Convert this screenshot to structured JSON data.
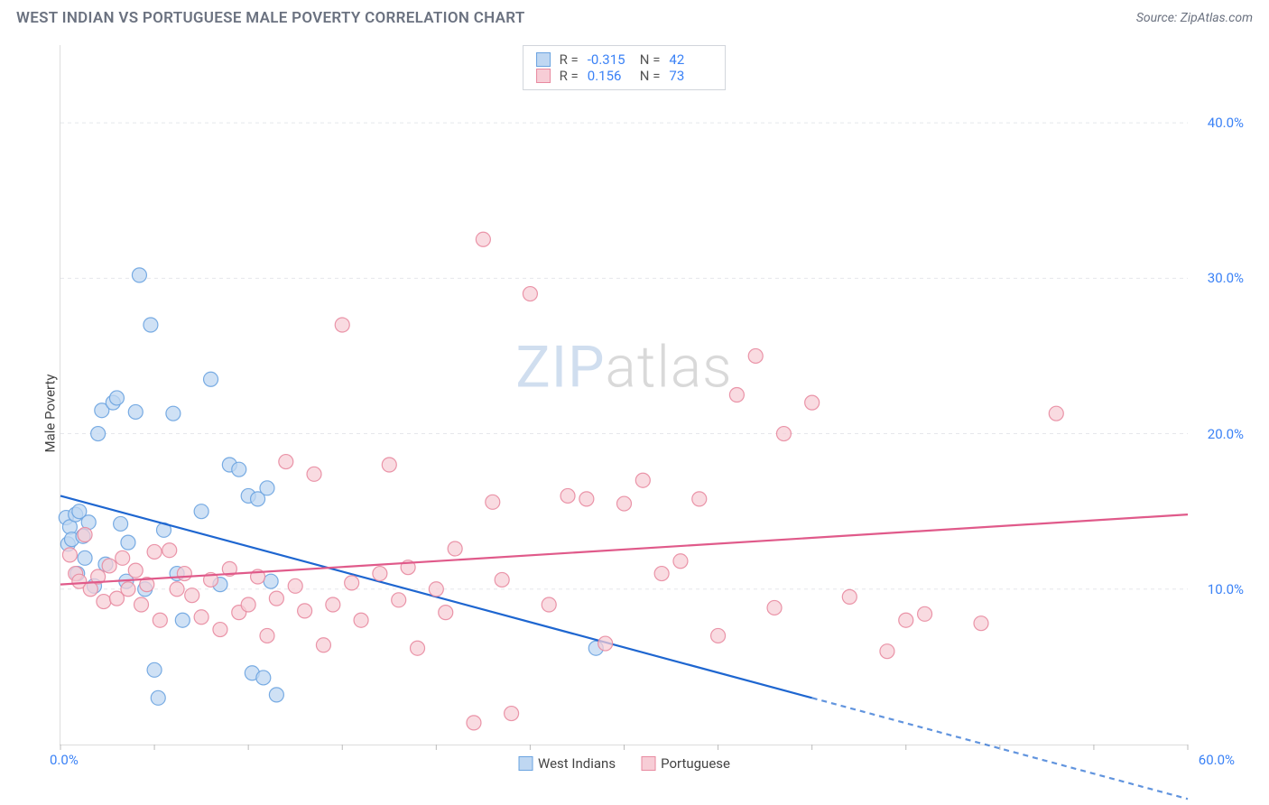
{
  "header": {
    "title": "WEST INDIAN VS PORTUGUESE MALE POVERTY CORRELATION CHART",
    "source": "Source: ZipAtlas.com"
  },
  "chart": {
    "type": "scatter",
    "ylabel": "Male Poverty",
    "xlim": [
      0,
      60
    ],
    "ylim": [
      0,
      45
    ],
    "x_tick_labels": {
      "min": "0.0%",
      "max": "60.0%"
    },
    "y_ticks": [
      10,
      20,
      30,
      40
    ],
    "y_tick_labels": [
      "10.0%",
      "20.0%",
      "30.0%",
      "40.0%"
    ],
    "x_minor_ticks": [
      0,
      5,
      10,
      15,
      20,
      25,
      30,
      35,
      40,
      45,
      50,
      55,
      60
    ],
    "background_color": "#ffffff",
    "grid_color": "#e5e7eb",
    "axis_color": "#dddddd",
    "tick_label_color": "#3b82f6",
    "watermark": {
      "zip": "ZIP",
      "atlas": "atlas"
    },
    "series": {
      "west_indians": {
        "label": "West Indians",
        "marker_fill": "#bfd7f2",
        "marker_stroke": "#6aa3e0",
        "marker_opacity": 0.75,
        "marker_radius": 8,
        "line_color": "#1e66d0",
        "line_width": 2.2,
        "trend": {
          "y_at_xmin": 16.0,
          "y_at_xmax": -3.5,
          "dash_after_x": 40
        },
        "R": "-0.315",
        "N": "42",
        "points": [
          [
            0.3,
            14.6
          ],
          [
            0.4,
            12.9
          ],
          [
            0.5,
            14.0
          ],
          [
            0.6,
            13.2
          ],
          [
            0.8,
            14.8
          ],
          [
            0.9,
            11.0
          ],
          [
            1.0,
            15.0
          ],
          [
            1.2,
            13.4
          ],
          [
            1.3,
            12.0
          ],
          [
            1.5,
            14.3
          ],
          [
            1.8,
            10.2
          ],
          [
            2.0,
            20.0
          ],
          [
            2.2,
            21.5
          ],
          [
            2.4,
            11.6
          ],
          [
            2.8,
            22.0
          ],
          [
            3.0,
            22.3
          ],
          [
            3.2,
            14.2
          ],
          [
            3.5,
            10.5
          ],
          [
            3.6,
            13.0
          ],
          [
            4.0,
            21.4
          ],
          [
            4.2,
            30.2
          ],
          [
            4.5,
            10.0
          ],
          [
            4.8,
            27.0
          ],
          [
            5.0,
            4.8
          ],
          [
            5.2,
            3.0
          ],
          [
            5.5,
            13.8
          ],
          [
            6.0,
            21.3
          ],
          [
            6.2,
            11.0
          ],
          [
            6.5,
            8.0
          ],
          [
            7.5,
            15.0
          ],
          [
            8.0,
            23.5
          ],
          [
            8.5,
            10.3
          ],
          [
            9.0,
            18.0
          ],
          [
            9.5,
            17.7
          ],
          [
            10.0,
            16.0
          ],
          [
            10.2,
            4.6
          ],
          [
            10.5,
            15.8
          ],
          [
            10.8,
            4.3
          ],
          [
            11.0,
            16.5
          ],
          [
            11.2,
            10.5
          ],
          [
            11.5,
            3.2
          ],
          [
            28.5,
            6.2
          ]
        ]
      },
      "portuguese": {
        "label": "Portuguese",
        "marker_fill": "#f7cdd6",
        "marker_stroke": "#e88aa0",
        "marker_opacity": 0.72,
        "marker_radius": 8,
        "line_color": "#e05a8a",
        "line_width": 2.2,
        "trend": {
          "y_at_xmin": 10.3,
          "y_at_xmax": 14.8
        },
        "R": "0.156",
        "N": "73",
        "points": [
          [
            0.5,
            12.2
          ],
          [
            0.8,
            11.0
          ],
          [
            1.0,
            10.5
          ],
          [
            1.3,
            13.5
          ],
          [
            1.6,
            10.0
          ],
          [
            2.0,
            10.8
          ],
          [
            2.3,
            9.2
          ],
          [
            2.6,
            11.5
          ],
          [
            3.0,
            9.4
          ],
          [
            3.3,
            12.0
          ],
          [
            3.6,
            10.0
          ],
          [
            4.0,
            11.2
          ],
          [
            4.3,
            9.0
          ],
          [
            4.6,
            10.3
          ],
          [
            5.0,
            12.4
          ],
          [
            5.3,
            8.0
          ],
          [
            5.8,
            12.5
          ],
          [
            6.2,
            10.0
          ],
          [
            6.6,
            11.0
          ],
          [
            7.0,
            9.6
          ],
          [
            7.5,
            8.2
          ],
          [
            8.0,
            10.6
          ],
          [
            8.5,
            7.4
          ],
          [
            9.0,
            11.3
          ],
          [
            9.5,
            8.5
          ],
          [
            10.0,
            9.0
          ],
          [
            10.5,
            10.8
          ],
          [
            11.0,
            7.0
          ],
          [
            11.5,
            9.4
          ],
          [
            12.0,
            18.2
          ],
          [
            12.5,
            10.2
          ],
          [
            13.0,
            8.6
          ],
          [
            13.5,
            17.4
          ],
          [
            14.0,
            6.4
          ],
          [
            14.5,
            9.0
          ],
          [
            15.0,
            27.0
          ],
          [
            15.5,
            10.4
          ],
          [
            16.0,
            8.0
          ],
          [
            17.0,
            11.0
          ],
          [
            17.5,
            18.0
          ],
          [
            18.0,
            9.3
          ],
          [
            18.5,
            11.4
          ],
          [
            19.0,
            6.2
          ],
          [
            20.0,
            10.0
          ],
          [
            20.5,
            8.5
          ],
          [
            21.0,
            12.6
          ],
          [
            22.0,
            1.4
          ],
          [
            22.5,
            32.5
          ],
          [
            23.0,
            15.6
          ],
          [
            23.5,
            10.6
          ],
          [
            24.0,
            2.0
          ],
          [
            25.0,
            29.0
          ],
          [
            26.0,
            9.0
          ],
          [
            27.0,
            16.0
          ],
          [
            28.0,
            15.8
          ],
          [
            29.0,
            6.5
          ],
          [
            30.0,
            15.5
          ],
          [
            31.0,
            17.0
          ],
          [
            32.0,
            11.0
          ],
          [
            33.0,
            11.8
          ],
          [
            34.0,
            15.8
          ],
          [
            35.0,
            7.0
          ],
          [
            36.0,
            22.5
          ],
          [
            37.0,
            25.0
          ],
          [
            38.0,
            8.8
          ],
          [
            38.5,
            20.0
          ],
          [
            40.0,
            22.0
          ],
          [
            42.0,
            9.5
          ],
          [
            44.0,
            6.0
          ],
          [
            45.0,
            8.0
          ],
          [
            46.0,
            8.4
          ],
          [
            49.0,
            7.8
          ],
          [
            53.0,
            21.3
          ]
        ]
      }
    },
    "legend_bottom": [
      "west_indians",
      "portuguese"
    ],
    "stats_box": {
      "rows": [
        {
          "series": "west_indians",
          "R_label": "R =",
          "N_label": "N ="
        },
        {
          "series": "portuguese",
          "R_label": "R =",
          "N_label": "N ="
        }
      ]
    }
  }
}
